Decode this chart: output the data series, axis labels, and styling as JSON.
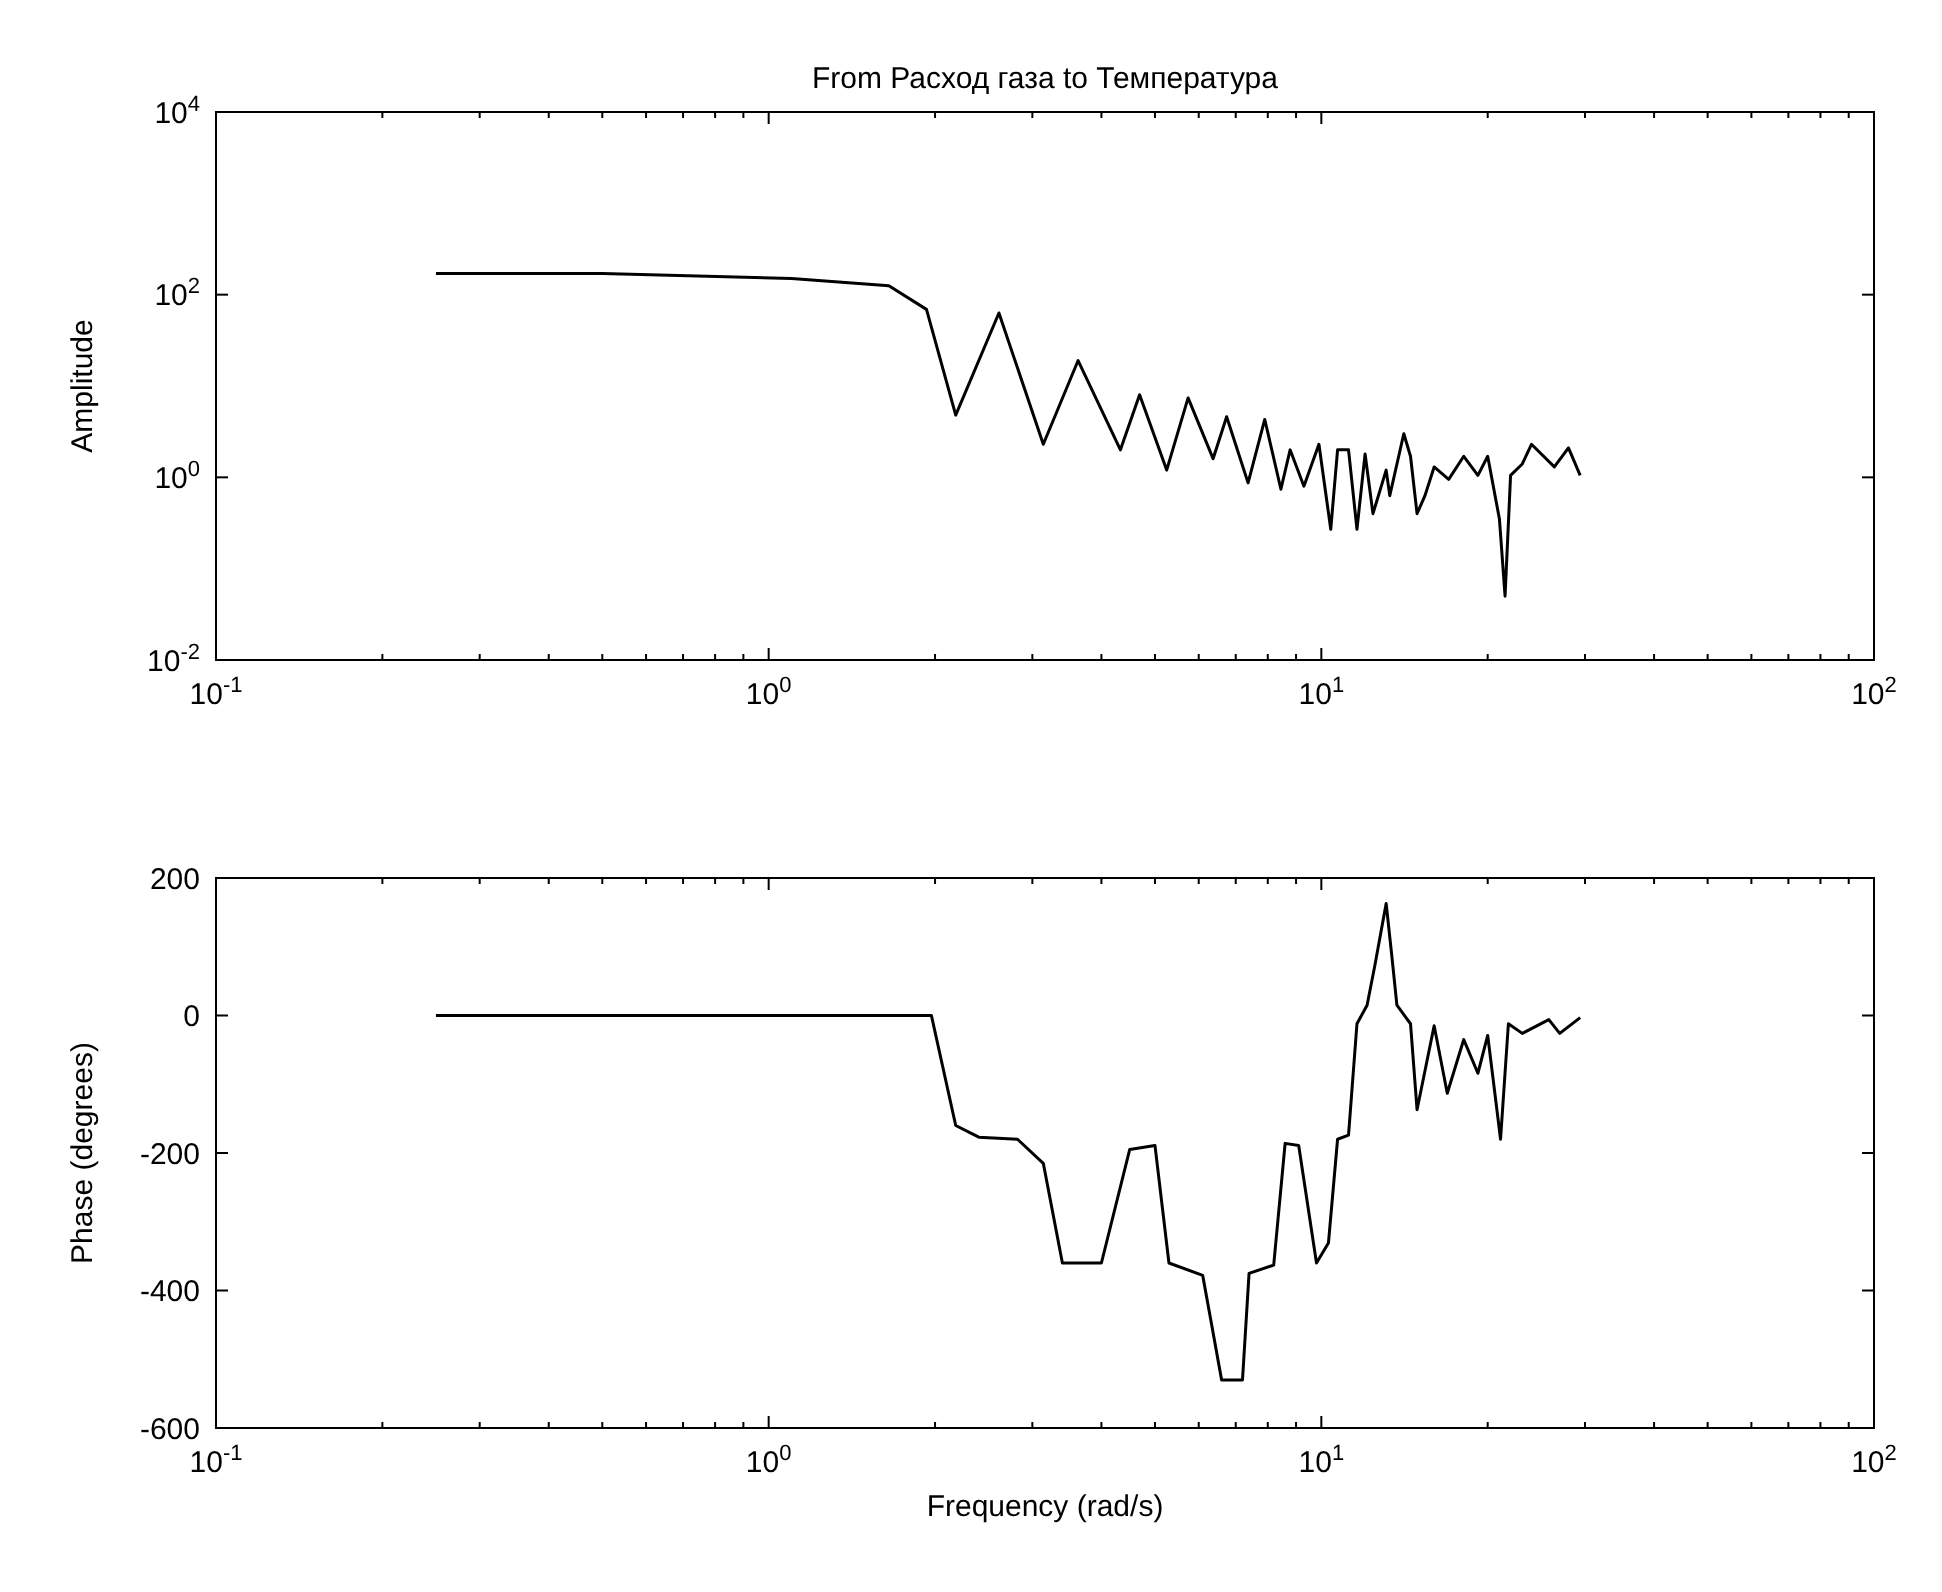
{
  "chart_data": [
    {
      "type": "line",
      "title": "From Расход газа to Температура",
      "ylabel": "Amplitude",
      "log": "xy",
      "grid": false,
      "marker": "none",
      "line_style": "solid",
      "x": [
        0.25,
        0.5,
        1.1,
        1.65,
        1.93,
        2.18,
        2.61,
        3.14,
        3.63,
        4.33,
        4.69,
        5.25,
        5.74,
        6.37,
        6.74,
        7.37,
        7.9,
        8.45,
        8.78,
        9.3,
        9.9,
        10.4,
        10.7,
        11.2,
        11.6,
        12,
        12.4,
        13.1,
        13.3,
        14.1,
        14.5,
        14.9,
        15.4,
        16,
        17,
        18.1,
        19.2,
        20,
        21,
        21.5,
        22,
        23.1,
        24,
        26.4,
        28,
        29.4
      ],
      "series": [
        {
          "color": "#000000",
          "values": [
            170,
            170,
            150,
            125,
            69,
            4.8,
            63,
            2.3,
            19,
            2,
            8,
            1.2,
            7.4,
            1.6,
            4.6,
            0.87,
            4.3,
            0.74,
            2,
            0.8,
            2.3,
            0.27,
            2,
            2,
            0.27,
            1.8,
            0.4,
            1.2,
            0.63,
            3,
            1.7,
            0.4,
            0.63,
            1.3,
            0.95,
            1.7,
            1.05,
            1.7,
            0.35,
            0.05,
            1.05,
            1.4,
            2.3,
            1.3,
            2.1,
            1.05
          ]
        }
      ],
      "xlim": [
        0.1,
        100
      ],
      "ylim": [
        0.01,
        10000
      ],
      "xticks": [
        {
          "value": 0.1,
          "label": "10$^{-1}$"
        },
        {
          "value": 0.2,
          "label": null
        },
        {
          "value": 0.3,
          "label": null
        },
        {
          "value": 0.4,
          "label": null
        },
        {
          "value": 0.5,
          "label": null
        },
        {
          "value": 0.6,
          "label": null
        },
        {
          "value": 0.7,
          "label": null
        },
        {
          "value": 0.8,
          "label": null
        },
        {
          "value": 0.9,
          "label": null
        },
        {
          "value": 1,
          "label": "10$^{0}$"
        },
        {
          "value": 2,
          "label": null
        },
        {
          "value": 3,
          "label": null
        },
        {
          "value": 4,
          "label": null
        },
        {
          "value": 5,
          "label": null
        },
        {
          "value": 6,
          "label": null
        },
        {
          "value": 7,
          "label": null
        },
        {
          "value": 8,
          "label": null
        },
        {
          "value": 9,
          "label": null
        },
        {
          "value": 10,
          "label": "10$^{1}$"
        },
        {
          "value": 20,
          "label": null
        },
        {
          "value": 30,
          "label": null
        },
        {
          "value": 40,
          "label": null
        },
        {
          "value": 50,
          "label": null
        },
        {
          "value": 60,
          "label": null
        },
        {
          "value": 70,
          "label": null
        },
        {
          "value": 80,
          "label": null
        },
        {
          "value": 90,
          "label": null
        },
        {
          "value": 100,
          "label": "10$^{2}$"
        }
      ],
      "yticks": [
        {
          "value": 0.01,
          "label": "10$^{-2}$"
        },
        {
          "value": 1,
          "label": "10$^{0}$"
        },
        {
          "value": 100,
          "label": "10$^{2}$"
        },
        {
          "value": 10000,
          "label": "10$^{4}$"
        }
      ]
    },
    {
      "type": "line",
      "xlabel": "Frequency (rad/s)",
      "ylabel": "Phase (degrees)",
      "log": "x",
      "grid": false,
      "marker": "none",
      "line_style": "solid",
      "x": [
        0.25,
        1.97,
        2.18,
        2.4,
        2.82,
        3.14,
        3.4,
        4,
        4.5,
        5,
        5.3,
        6.1,
        6.3,
        6.6,
        7.2,
        7.4,
        8.2,
        8.6,
        9.1,
        9.8,
        10.3,
        10.7,
        11.2,
        11.6,
        12.1,
        12.5,
        13.1,
        13.4,
        13.7,
        14.5,
        14.9,
        16,
        16.9,
        18.1,
        19.2,
        20,
        21.1,
        21.8,
        23.1,
        25.8,
        27,
        29.4
      ],
      "series": [
        {
          "color": "#000000",
          "values": [
            0,
            0,
            -160,
            -177,
            -180,
            -215,
            -360,
            -360,
            -195,
            -189,
            -360,
            -378,
            -440,
            -530,
            -530,
            -375,
            -363,
            -186,
            -189,
            -360,
            -331,
            -180,
            -174,
            -12,
            15,
            73,
            163,
            90,
            15,
            -12,
            -137,
            -15,
            -113,
            -35,
            -84,
            -29,
            -180,
            -12,
            -26,
            -6,
            -26,
            -3
          ]
        }
      ],
      "xlim": [
        0.1,
        100
      ],
      "ylim": [
        -600,
        200
      ],
      "xticks": [
        {
          "value": 0.1,
          "label": "10$^{-1}$"
        },
        {
          "value": 0.2,
          "label": null
        },
        {
          "value": 0.3,
          "label": null
        },
        {
          "value": 0.4,
          "label": null
        },
        {
          "value": 0.5,
          "label": null
        },
        {
          "value": 0.6,
          "label": null
        },
        {
          "value": 0.7,
          "label": null
        },
        {
          "value": 0.8,
          "label": null
        },
        {
          "value": 0.9,
          "label": null
        },
        {
          "value": 1,
          "label": "10$^{0}$"
        },
        {
          "value": 2,
          "label": null
        },
        {
          "value": 3,
          "label": null
        },
        {
          "value": 4,
          "label": null
        },
        {
          "value": 5,
          "label": null
        },
        {
          "value": 6,
          "label": null
        },
        {
          "value": 7,
          "label": null
        },
        {
          "value": 8,
          "label": null
        },
        {
          "value": 9,
          "label": null
        },
        {
          "value": 10,
          "label": "10$^{1}$"
        },
        {
          "value": 20,
          "label": null
        },
        {
          "value": 30,
          "label": null
        },
        {
          "value": 40,
          "label": null
        },
        {
          "value": 50,
          "label": null
        },
        {
          "value": 60,
          "label": null
        },
        {
          "value": 70,
          "label": null
        },
        {
          "value": 80,
          "label": null
        },
        {
          "value": 90,
          "label": null
        },
        {
          "value": 100,
          "label": "10$^{2}$"
        }
      ],
      "yticks": [
        -600,
        -400,
        -200,
        0,
        200
      ]
    }
  ]
}
